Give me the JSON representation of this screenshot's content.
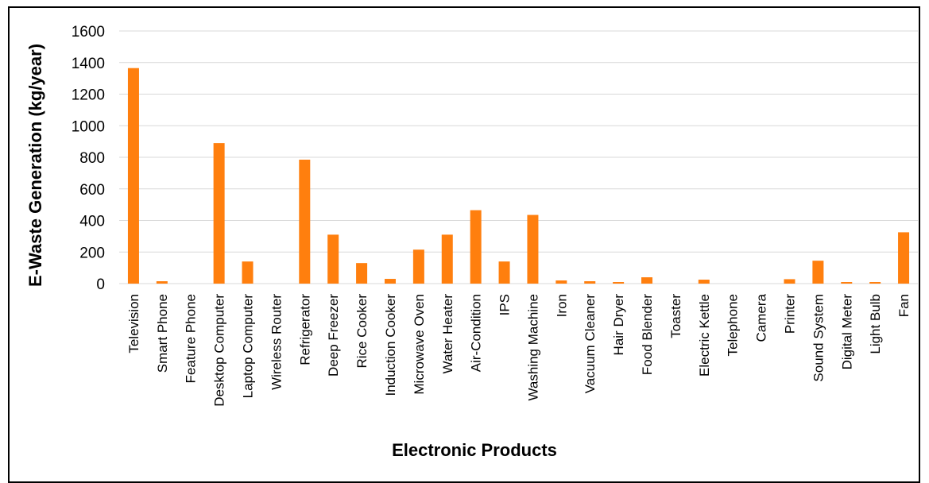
{
  "chart_data": {
    "type": "bar",
    "xlabel": "Electronic  Products",
    "ylabel": "E-Waste Generation  (kg/year)",
    "ylim": [
      0,
      1600
    ],
    "yticks": [
      0,
      200,
      400,
      600,
      800,
      1000,
      1200,
      1400,
      1600
    ],
    "grid": true,
    "bar_color": "#ff7f0e",
    "categories": [
      "Television",
      "Smart Phone",
      "Feature Phone",
      "Desktop Computer",
      "Laptop Computer",
      "Wireless Router",
      "Refrigerator",
      "Deep Freezer",
      "Rice Cooker",
      "Induction Cooker",
      "Microwave Oven",
      "Water Heater",
      "Air-Condition",
      "IPS",
      "Washing Machine",
      "Iron",
      "Vacuum Cleaner",
      "Hair Dryer",
      "Food  Blender",
      "Toaster",
      "Electric Kettle",
      "Telephone",
      "Camera",
      "Printer",
      "Sound System",
      "Digital Meter",
      "Light Bulb",
      "Fan"
    ],
    "values": [
      1365,
      15,
      0,
      890,
      140,
      0,
      785,
      310,
      130,
      30,
      215,
      310,
      465,
      140,
      435,
      20,
      15,
      10,
      40,
      0,
      25,
      0,
      0,
      28,
      145,
      10,
      10,
      325
    ]
  }
}
